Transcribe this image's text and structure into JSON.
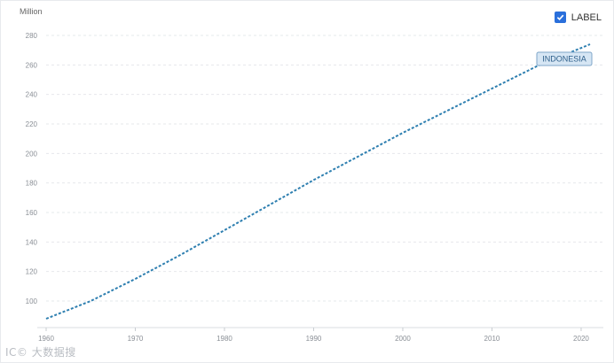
{
  "legend": {
    "label": "LABEL",
    "checked": true
  },
  "watermark": "IC© 大数据搜",
  "colors": {
    "line": "#2e7fb0",
    "accent": "#2a6fdb"
  },
  "chart_data": {
    "type": "line",
    "title": "",
    "xlabel": "",
    "ylabel": "Million",
    "xlim": [
      1960,
      2021
    ],
    "ylim": [
      88,
      280
    ],
    "x_ticks": [
      1960,
      1970,
      1980,
      1990,
      2000,
      2010,
      2020
    ],
    "y_ticks": [
      100,
      120,
      140,
      160,
      180,
      200,
      220,
      240,
      260,
      280
    ],
    "grid": true,
    "series": [
      {
        "name": "INDONESIA",
        "x": [
          1960,
          1965,
          1970,
          1975,
          1980,
          1985,
          1990,
          1995,
          2000,
          2005,
          2010,
          2015,
          2021
        ],
        "values": [
          88,
          100,
          115,
          131,
          148,
          165,
          182,
          198,
          214,
          229,
          244,
          259,
          274
        ]
      }
    ]
  }
}
